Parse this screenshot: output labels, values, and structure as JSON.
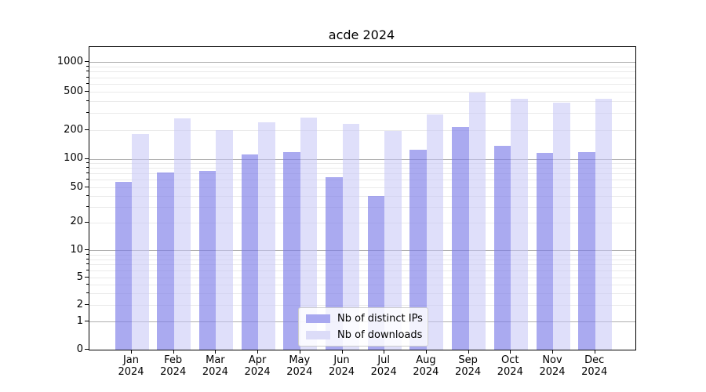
{
  "title": "acde 2024",
  "chart_data": {
    "type": "bar",
    "title": "acde 2024",
    "x_categories": [
      "Jan 2024",
      "Feb 2024",
      "Mar 2024",
      "Apr 2024",
      "May 2024",
      "Jun 2024",
      "Jul 2024",
      "Aug 2024",
      "Sep 2024",
      "Oct 2024",
      "Nov 2024",
      "Dec 2024"
    ],
    "series": [
      {
        "name": "Nb of distinct IPs",
        "values": [
          57,
          72,
          74,
          112,
          118,
          64,
          40,
          125,
          215,
          137,
          115,
          118
        ],
        "color": "#a8a8f0",
        "bar_rgba": "rgba(124,124,232,0.65)"
      },
      {
        "name": "Nb of downloads",
        "values": [
          183,
          265,
          200,
          242,
          272,
          233,
          198,
          292,
          490,
          420,
          385,
          425
        ],
        "color": "#dcdcf8",
        "bar_rgba": "rgba(196,196,246,0.55)"
      }
    ],
    "y_scale": "symlog",
    "ylim": [
      0,
      1400
    ],
    "y_tick_values": [
      0,
      1,
      2,
      5,
      10,
      20,
      50,
      100,
      200,
      500,
      1000
    ],
    "y_tick_labels": [
      "0",
      "1",
      "2",
      "5",
      "10",
      "20",
      "50",
      "100",
      "200",
      "500",
      "1000"
    ],
    "y_major_grid_values": [
      1,
      10,
      100,
      1000
    ],
    "y_minor_grid_values": [
      2,
      3,
      4,
      5,
      6,
      7,
      8,
      9,
      20,
      30,
      40,
      50,
      60,
      70,
      80,
      90,
      200,
      300,
      400,
      500,
      600,
      700,
      800,
      900
    ],
    "grid": true,
    "legend_position": "lower center",
    "xlabel": "",
    "ylabel": ""
  },
  "x_axis": {
    "months": [
      "Jan",
      "Feb",
      "Mar",
      "Apr",
      "May",
      "Jun",
      "Jul",
      "Aug",
      "Sep",
      "Oct",
      "Nov",
      "Dec"
    ],
    "year": "2024"
  },
  "colors": {
    "major_grid": "#b0b0b0",
    "minor_grid": "#eaeaea",
    "spine": "#000000",
    "background": "#ffffff",
    "legend_border": "#cccccc"
  }
}
